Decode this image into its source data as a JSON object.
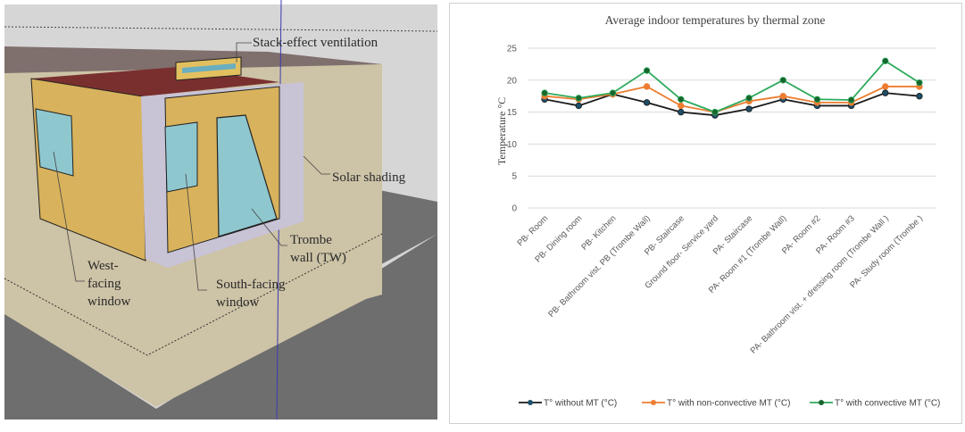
{
  "model_labels": {
    "stack": "Stack-effect ventilation",
    "shading": "Solar shading",
    "trombe_1": "Trombe",
    "trombe_2": "wall (TW)",
    "west_1": "West-",
    "west_2": "facing",
    "west_3": "window",
    "south_1": "South-facing",
    "south_2": "window"
  },
  "chart_data": {
    "type": "line",
    "title": "Average indoor temperatures by thermal zone",
    "xlabel": "",
    "ylabel": "Temperature °C",
    "ylim": [
      0,
      25
    ],
    "yticks": [
      "0",
      "5",
      "10",
      "15",
      "20",
      "25"
    ],
    "grid": true,
    "legend": "bottom",
    "categories": [
      "PB- Room",
      "PB- Dining room",
      "PB- Kitchen",
      "PB- Bathroom vist. PB (Trombe Wall)",
      "PB- Staircase",
      "Ground floor- Service yard",
      "PA- Staircase",
      "PA- Room #1 (Trombe Wall)",
      "PA- Room #2",
      "PA- Room #3",
      "PA- Bathroom vist. + dressing room (Trombe Wall )",
      "PA- Study room (Trombe )"
    ],
    "series": [
      {
        "name": "T° without MT (°C)",
        "line_color": "#1a1a1a",
        "marker_color": "#1f4e68",
        "values": [
          17,
          16,
          17.8,
          16.5,
          15,
          14.5,
          15.5,
          17,
          16,
          16,
          18,
          17.5
        ]
      },
      {
        "name": "T° with non-convective MT (°C)",
        "line_color": "#ed7d31",
        "marker_color": "#ed7d31",
        "values": [
          17.5,
          17,
          17.8,
          19,
          16,
          15,
          16.7,
          17.5,
          16.5,
          16.5,
          19,
          19
        ]
      },
      {
        "name": "T° with convective MT (°C)",
        "line_color": "#2eaa5c",
        "marker_color": "#17652e",
        "values": [
          18,
          17.2,
          18,
          21.5,
          17,
          15,
          17.2,
          20,
          17,
          16.9,
          23,
          19.6
        ]
      }
    ]
  }
}
